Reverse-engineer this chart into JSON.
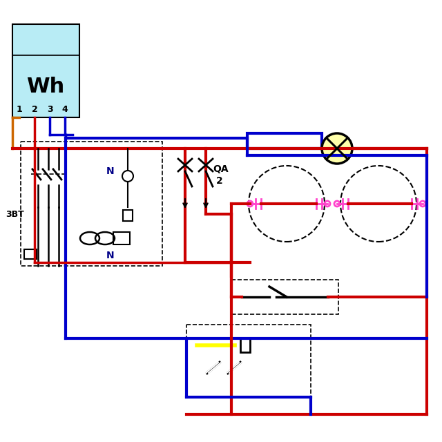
{
  "bg_color": "#ffffff",
  "RED": "#cc0000",
  "BLUE": "#0000cc",
  "BLACK": "#000000",
  "PINK": "#ff44cc",
  "YELLOW": "#ffff00",
  "ORANGE": "#cc6600",
  "wh_label": "Wh",
  "wh_terminals": [
    "1",
    "2",
    "3",
    "4"
  ],
  "qa_label": "QA",
  "qa_num": "2",
  "n_label": "N",
  "bt_label": "3BT"
}
